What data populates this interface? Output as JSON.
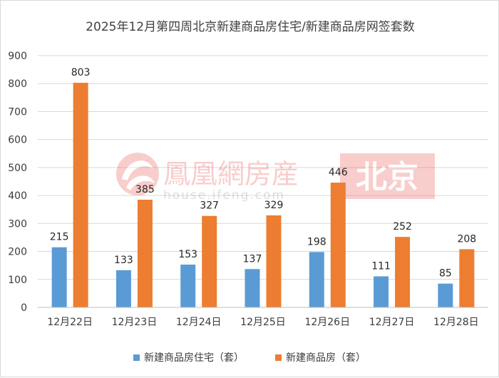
{
  "chart_data": {
    "type": "bar",
    "title": "2025年12月第四周北京新建商品房住宅/新建商品房网签套数",
    "categories": [
      "12月22日",
      "12月23日",
      "12月24日",
      "12月25日",
      "12月26日",
      "12月27日",
      "12月28日"
    ],
    "series": [
      {
        "name": "新建商品房住宅（套）",
        "color": "#5b9bd5",
        "values": [
          215,
          133,
          153,
          137,
          198,
          111,
          85
        ]
      },
      {
        "name": "新建商品房（套）",
        "color": "#ed7d31",
        "values": [
          803,
          385,
          327,
          329,
          446,
          252,
          208
        ]
      }
    ],
    "ylim": [
      0,
      900
    ],
    "yticks": [
      0,
      100,
      200,
      300,
      400,
      500,
      600,
      700,
      800,
      900
    ],
    "grid": true,
    "legend_position": "bottom"
  },
  "watermark": {
    "brand": "鳳凰網房産",
    "url": "house.ifeng.com",
    "city": "北京"
  }
}
